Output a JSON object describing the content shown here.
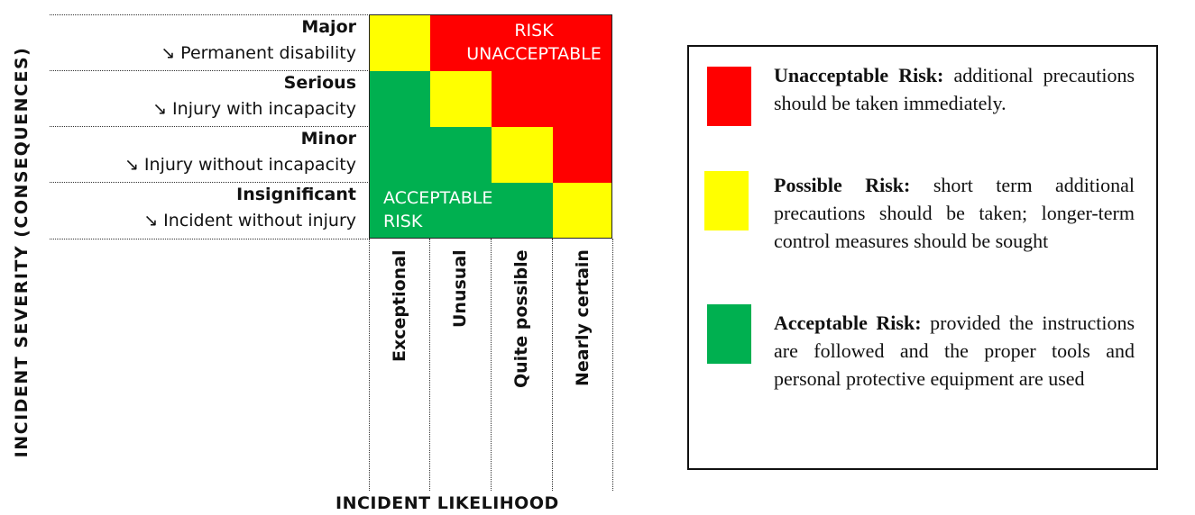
{
  "y_axis_title": "INCIDENT SEVERITY (CONSEQUENCES)",
  "x_axis_title": "INCIDENT LIKELIHOOD",
  "severity_levels": [
    {
      "name": "Major",
      "description": "↘ Permanent disability"
    },
    {
      "name": "Serious",
      "description": "↘ Injury with incapacity"
    },
    {
      "name": "Minor",
      "description": "↘ Injury without incapacity"
    },
    {
      "name": "Insignificant",
      "description": "↘ Incident without injury"
    }
  ],
  "likelihood_levels": [
    "Exceptional",
    "Unusual",
    "Quite possible",
    "Nearly certain"
  ],
  "matrix": {
    "rows": [
      [
        "yellow",
        "red",
        "red",
        "red"
      ],
      [
        "green",
        "yellow",
        "red",
        "red"
      ],
      [
        "green",
        "green",
        "yellow",
        "red"
      ],
      [
        "green",
        "green",
        "green",
        "yellow"
      ]
    ],
    "zone_labels": {
      "unacceptable_line1": "RISK",
      "unacceptable_line2": "UNACCEPTABLE",
      "acceptable_line1": "ACCEPTABLE",
      "acceptable_line2": "RISK"
    }
  },
  "colors": {
    "red": "#ff0000",
    "yellow": "#ffff00",
    "green": "#00b050"
  },
  "legend": [
    {
      "color": "red",
      "title": "Unacceptable Risk:",
      "text": "additional precautions should be taken immediately."
    },
    {
      "color": "yellow",
      "title": "Possible Risk:",
      "text": "short term additional precautions should be taken; longer-term control measures should be sought"
    },
    {
      "color": "green",
      "title": "Acceptable Risk:",
      "text": "provided the instructions are followed and the proper tools and personal protective equipment are used"
    }
  ]
}
